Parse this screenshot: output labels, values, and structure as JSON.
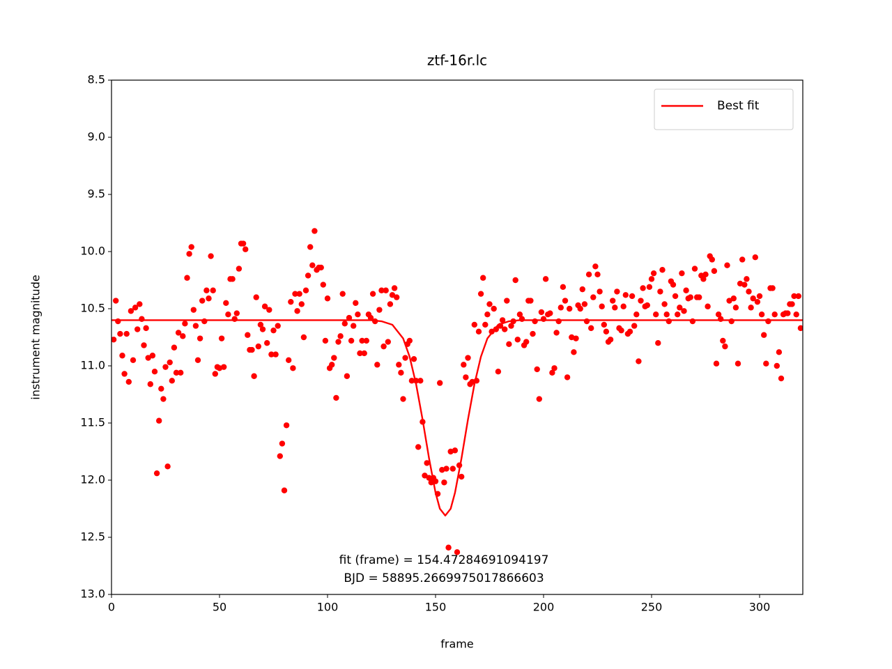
{
  "chart_data": {
    "type": "scatter",
    "title": "ztf-16r.lc",
    "xlabel": "frame",
    "ylabel": "instrument magnitude",
    "xlim": [
      0,
      320
    ],
    "ylim": [
      13.0,
      8.5
    ],
    "xticks": [
      0,
      50,
      100,
      150,
      200,
      250,
      300
    ],
    "yticks": [
      8.5,
      {
        "value": 9,
        "label": "9.0"
      },
      9.5,
      {
        "value": 10,
        "label": "10.0"
      },
      10.5,
      {
        "value": 11,
        "label": "11.0"
      },
      11.5,
      {
        "value": 12,
        "label": "12.0"
      },
      12.5,
      {
        "value": 13,
        "label": "13.0"
      }
    ],
    "annotations": [
      "fit (frame) = 154.47284691094197",
      "BJD = 58895.2669975017866603"
    ],
    "legend": "upper right",
    "series": [
      {
        "type": "scatter",
        "color": "#ff0000",
        "x": [
          1,
          2,
          3,
          4,
          5,
          6,
          7,
          8,
          9,
          10,
          11,
          12,
          13,
          14,
          15,
          16,
          17,
          18,
          19,
          20,
          21,
          22,
          23,
          24,
          25,
          26,
          27,
          28,
          29,
          30,
          31,
          32,
          33,
          34,
          35,
          36,
          37,
          38,
          39,
          40,
          41,
          42,
          43,
          44,
          45,
          46,
          47,
          48,
          49,
          50,
          51,
          52,
          53,
          54,
          55,
          56,
          57,
          58,
          59,
          60,
          61,
          62,
          63,
          64,
          65,
          66,
          67,
          68,
          69,
          70,
          71,
          72,
          73,
          74,
          75,
          76,
          77,
          78,
          79,
          80,
          81,
          82,
          83,
          84,
          85,
          86,
          87,
          88,
          89,
          90,
          91,
          92,
          93,
          94,
          95,
          96,
          97,
          98,
          99,
          100,
          101,
          102,
          103,
          104,
          105,
          106,
          107,
          108,
          109,
          110,
          111,
          112,
          113,
          114,
          115,
          116,
          117,
          118,
          119,
          120,
          121,
          122,
          123,
          124,
          125,
          126,
          127,
          128,
          129,
          130,
          131,
          132,
          133,
          134,
          135,
          136,
          137,
          138,
          139,
          140,
          141,
          142,
          143,
          144,
          145,
          146,
          147,
          148,
          149,
          150,
          151,
          152,
          153,
          154,
          155,
          156,
          157,
          158,
          159,
          160,
          161,
          162,
          163,
          164,
          165,
          166,
          167,
          168,
          169,
          170,
          171,
          172,
          173,
          174,
          175,
          176,
          177,
          178,
          179,
          180,
          181,
          182,
          183,
          184,
          185,
          186,
          187,
          188,
          189,
          190,
          191,
          192,
          193,
          194,
          195,
          196,
          197,
          198,
          199,
          200,
          201,
          202,
          203,
          204,
          205,
          206,
          207,
          208,
          209,
          210,
          211,
          212,
          213,
          214,
          215,
          216,
          217,
          218,
          219,
          220,
          221,
          222,
          223,
          224,
          225,
          226,
          227,
          228,
          229,
          230,
          231,
          232,
          233,
          234,
          235,
          236,
          237,
          238,
          239,
          240,
          241,
          242,
          243,
          244,
          245,
          246,
          247,
          248,
          249,
          250,
          251,
          252,
          253,
          254,
          255,
          256,
          257,
          258,
          259,
          260,
          261,
          262,
          263,
          264,
          265,
          266,
          267,
          268,
          269,
          270,
          271,
          272,
          273,
          274,
          275,
          276,
          277,
          278,
          279,
          280,
          281,
          282,
          283,
          284,
          285,
          286,
          287,
          288,
          289,
          290,
          291,
          292,
          293,
          294,
          295,
          296,
          297,
          298,
          299,
          300,
          301,
          302,
          303,
          304,
          305,
          306,
          307,
          308,
          309,
          310,
          311,
          312,
          313,
          314,
          315,
          316,
          317,
          318,
          319
        ],
        "values": [
          10.77,
          10.43,
          10.61,
          10.72,
          10.91,
          11.07,
          10.72,
          11.14,
          10.52,
          10.95,
          10.49,
          10.68,
          10.46,
          10.59,
          10.82,
          10.67,
          10.93,
          11.16,
          10.91,
          11.05,
          11.94,
          11.48,
          11.2,
          11.29,
          11.01,
          11.88,
          10.97,
          11.13,
          10.84,
          11.06,
          10.71,
          11.06,
          10.74,
          10.63,
          10.23,
          10.02,
          9.96,
          10.51,
          10.65,
          10.95,
          10.76,
          10.43,
          10.61,
          10.34,
          10.41,
          10.04,
          10.34,
          11.07,
          11.01,
          11.02,
          10.76,
          11.01,
          10.45,
          10.55,
          10.24,
          10.24,
          10.59,
          10.54,
          10.15,
          9.93,
          9.93,
          9.98,
          10.73,
          10.86,
          10.86,
          11.09,
          10.4,
          10.83,
          10.64,
          10.68,
          10.48,
          10.8,
          10.51,
          10.9,
          10.69,
          10.9,
          10.65,
          11.79,
          11.68,
          12.09,
          11.52,
          10.95,
          10.44,
          11.02,
          10.37,
          10.52,
          10.37,
          10.46,
          10.75,
          10.34,
          10.21,
          9.96,
          10.12,
          9.82,
          10.16,
          10.14,
          10.14,
          10.29,
          10.78,
          10.41,
          11.02,
          10.99,
          10.93,
          11.28,
          10.79,
          10.74,
          10.37,
          10.63,
          11.09,
          10.58,
          10.78,
          10.65,
          10.45,
          10.55,
          10.89,
          10.78,
          10.89,
          10.78,
          10.55,
          10.58,
          10.37,
          10.61,
          10.99,
          10.51,
          10.34,
          10.83,
          10.34,
          10.79,
          10.46,
          10.38,
          10.32,
          10.4,
          10.99,
          11.06,
          11.29,
          10.93,
          10.81,
          10.78,
          11.13,
          10.94,
          11.13,
          11.71,
          11.13,
          11.49,
          11.96,
          11.85,
          11.98,
          12.02,
          11.98,
          12.01,
          12.12,
          11.15,
          11.91,
          12.02,
          11.9,
          12.59,
          11.75,
          11.9,
          11.74,
          12.63,
          11.87,
          11.97,
          10.99,
          11.1,
          10.93,
          11.16,
          11.14,
          10.64,
          11.13,
          10.7,
          10.37,
          10.23,
          10.64,
          10.55,
          10.46,
          10.7,
          10.5,
          10.68,
          11.05,
          10.65,
          10.6,
          10.68,
          10.43,
          10.81,
          10.65,
          10.61,
          10.25,
          10.77,
          10.55,
          10.59,
          10.82,
          10.79,
          10.43,
          10.43,
          10.72,
          10.61,
          11.03,
          11.29,
          10.53,
          10.59,
          10.24,
          10.55,
          10.54,
          11.06,
          11.02,
          10.71,
          10.61,
          10.49,
          10.31,
          10.43,
          11.1,
          10.5,
          10.75,
          10.88,
          10.76,
          10.47,
          10.5,
          10.33,
          10.46,
          10.61,
          10.2,
          10.67,
          10.4,
          10.13,
          10.2,
          10.35,
          10.48,
          10.64,
          10.7,
          10.79,
          10.77,
          10.43,
          10.49,
          10.35,
          10.67,
          10.69,
          10.48,
          10.38,
          10.72,
          10.7,
          10.39,
          10.65,
          10.55,
          10.96,
          10.43,
          10.32,
          10.48,
          10.47,
          10.31,
          10.24,
          10.19,
          10.55,
          10.8,
          10.35,
          10.16,
          10.46,
          10.55,
          10.61,
          10.26,
          10.29,
          10.39,
          10.55,
          10.49,
          10.19,
          10.52,
          10.34,
          10.41,
          10.4,
          10.61,
          10.15,
          10.4,
          10.4,
          10.21,
          10.24,
          10.2,
          10.48,
          10.04,
          10.07,
          10.17,
          10.98,
          10.55,
          10.59,
          10.78,
          10.83,
          10.12,
          10.43,
          10.61,
          10.41,
          10.49,
          10.98,
          10.28,
          10.07,
          10.29,
          10.24,
          10.35,
          10.49,
          10.41,
          10.05,
          10.44,
          10.39,
          10.55,
          10.73,
          10.98,
          10.61,
          10.32,
          10.32,
          10.55,
          11.0,
          10.88,
          11.11,
          10.55,
          10.54,
          10.54,
          10.46,
          10.46,
          10.39,
          10.55,
          10.39,
          10.67
        ]
      },
      {
        "type": "line",
        "name": "Best fit",
        "color": "#ff0000",
        "x": [
          0,
          120,
          125,
          130,
          135,
          138,
          141,
          144,
          147,
          150,
          152,
          154.5,
          157,
          159,
          162,
          165,
          168,
          171,
          174,
          179,
          184,
          189,
          320
        ],
        "values": [
          10.6,
          10.6,
          10.61,
          10.64,
          10.76,
          10.92,
          11.16,
          11.47,
          11.81,
          12.11,
          12.25,
          12.31,
          12.25,
          12.11,
          11.81,
          11.47,
          11.16,
          10.92,
          10.76,
          10.64,
          10.61,
          10.6,
          10.6
        ]
      }
    ]
  }
}
